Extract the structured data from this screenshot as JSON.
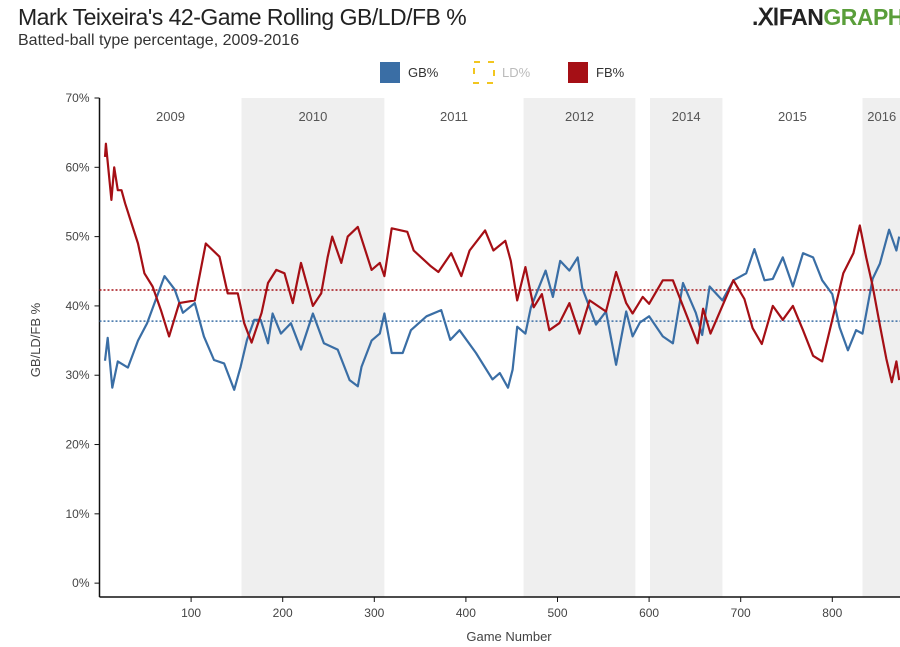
{
  "header": {
    "title": "Mark Teixeira's 42-Game Rolling GB/LD/FB %",
    "subtitle": "Batted-ball type percentage, 2009-2016",
    "logo_text": "FANGRAPHS"
  },
  "colors": {
    "gb": "#3a6ea5",
    "ld": "#f2c61f",
    "fb": "#a50f15",
    "band": "#efefef"
  },
  "chart_data": {
    "type": "line",
    "title": "Mark Teixeira's 42-Game Rolling GB/LD/FB %",
    "subtitle": "Batted-ball type percentage, 2009-2016",
    "xlabel": "Game Number",
    "ylabel": "GB/LD/FB %",
    "xlim": [
      0,
      875
    ],
    "ylim": [
      -2,
      70
    ],
    "xticks": [
      100,
      200,
      300,
      400,
      500,
      600,
      700,
      800
    ],
    "yticks": [
      0,
      10,
      20,
      30,
      40,
      50,
      60,
      70
    ],
    "ytick_labels": [
      "0%",
      "10%",
      "20%",
      "30%",
      "40%",
      "50%",
      "60%",
      "70%"
    ],
    "legend": {
      "placement": "top",
      "items": [
        {
          "label": "GB%",
          "key": "gb"
        },
        {
          "label": "LD%",
          "key": "ld",
          "hidden": true
        },
        {
          "label": "FB%",
          "key": "fb"
        }
      ]
    },
    "seasons": [
      {
        "label": "2009",
        "start": 0,
        "end": 155,
        "shaded": false
      },
      {
        "label": "2010",
        "start": 155,
        "end": 311,
        "shaded": true
      },
      {
        "label": "2011",
        "start": 311,
        "end": 463,
        "shaded": false
      },
      {
        "label": "2012",
        "start": 463,
        "end": 585,
        "shaded": true
      },
      {
        "label": "2014",
        "start": 601,
        "end": 680,
        "shaded": true
      },
      {
        "label": "2015",
        "start": 680,
        "end": 833,
        "shaded": false
      },
      {
        "label": "2016",
        "start": 833,
        "end": 875,
        "shaded": true
      }
    ],
    "averages": {
      "gb": 37.8,
      "fb": 42.3
    },
    "series": [
      {
        "name": "GB%",
        "key": "gb",
        "points": [
          [
            6,
            32.1
          ],
          [
            9,
            35.4
          ],
          [
            14,
            28.2
          ],
          [
            20,
            32
          ],
          [
            31,
            31.1
          ],
          [
            42,
            35
          ],
          [
            52,
            37.5
          ],
          [
            60,
            40.4
          ],
          [
            71,
            44.3
          ],
          [
            82,
            42.4
          ],
          [
            91,
            39
          ],
          [
            104,
            40.4
          ],
          [
            114,
            35.6
          ],
          [
            125,
            32.2
          ],
          [
            136,
            31.7
          ],
          [
            147,
            27.9
          ],
          [
            154,
            31.2
          ],
          [
            161,
            35.1
          ],
          [
            169,
            38
          ],
          [
            176,
            38
          ],
          [
            184,
            34.6
          ],
          [
            189,
            38.9
          ],
          [
            198,
            36
          ],
          [
            209,
            37.5
          ],
          [
            220,
            33.7
          ],
          [
            233,
            38.9
          ],
          [
            245,
            34.6
          ],
          [
            260,
            33.7
          ],
          [
            273,
            29.3
          ],
          [
            282,
            28.4
          ],
          [
            286,
            31.2
          ],
          [
            297,
            35
          ],
          [
            306,
            36
          ],
          [
            311,
            38.9
          ],
          [
            319,
            33.2
          ],
          [
            331,
            33.2
          ],
          [
            340,
            36.5
          ],
          [
            357,
            38.5
          ],
          [
            373,
            39.4
          ],
          [
            383,
            35.1
          ],
          [
            393,
            36.5
          ],
          [
            411,
            33.2
          ],
          [
            429,
            29.4
          ],
          [
            437,
            30.3
          ],
          [
            446,
            28.2
          ],
          [
            451,
            30.8
          ],
          [
            456,
            37
          ],
          [
            465,
            36
          ],
          [
            471,
            39.8
          ],
          [
            487,
            45.1
          ],
          [
            495,
            41.3
          ],
          [
            503,
            46.5
          ],
          [
            513,
            45.1
          ],
          [
            522,
            47
          ],
          [
            527,
            42.6
          ],
          [
            542,
            37.3
          ],
          [
            553,
            39.2
          ],
          [
            564,
            31.5
          ],
          [
            575,
            39.2
          ],
          [
            582,
            35.6
          ],
          [
            590,
            37.6
          ],
          [
            600,
            38.5
          ],
          [
            615,
            35.6
          ],
          [
            626,
            34.6
          ],
          [
            637,
            43.3
          ],
          [
            651,
            39
          ],
          [
            658,
            35.8
          ],
          [
            666,
            42.8
          ],
          [
            680,
            40.8
          ],
          [
            692,
            43.7
          ],
          [
            706,
            44.7
          ],
          [
            715,
            48.2
          ],
          [
            726,
            43.7
          ],
          [
            735,
            43.9
          ],
          [
            746,
            47
          ],
          [
            757,
            42.8
          ],
          [
            768,
            47.6
          ],
          [
            779,
            47
          ],
          [
            789,
            43.7
          ],
          [
            800,
            41.7
          ],
          [
            808,
            36.9
          ],
          [
            817,
            33.6
          ],
          [
            826,
            36.5
          ],
          [
            833,
            36
          ],
          [
            844,
            43.9
          ],
          [
            852,
            46.1
          ],
          [
            862,
            51
          ],
          [
            870,
            48
          ],
          [
            873,
            50
          ]
        ]
      },
      {
        "name": "FB%",
        "key": "fb",
        "points": [
          [
            6,
            61.5
          ],
          [
            7,
            63.4
          ],
          [
            13,
            55.3
          ],
          [
            16,
            60
          ],
          [
            20,
            56.7
          ],
          [
            24,
            56.7
          ],
          [
            28,
            54.8
          ],
          [
            42,
            49
          ],
          [
            49,
            44.7
          ],
          [
            58,
            42.8
          ],
          [
            67,
            39.4
          ],
          [
            76,
            35.6
          ],
          [
            87,
            40.4
          ],
          [
            104,
            40.8
          ],
          [
            116,
            49
          ],
          [
            131,
            47.1
          ],
          [
            140,
            41.8
          ],
          [
            151,
            41.8
          ],
          [
            158,
            37.5
          ],
          [
            166,
            34.7
          ],
          [
            177,
            39
          ],
          [
            184,
            43.3
          ],
          [
            193,
            45.2
          ],
          [
            202,
            44.7
          ],
          [
            211,
            40.4
          ],
          [
            220,
            46.2
          ],
          [
            233,
            40
          ],
          [
            242,
            41.8
          ],
          [
            249,
            47
          ],
          [
            254,
            50
          ],
          [
            264,
            46.2
          ],
          [
            271,
            50
          ],
          [
            282,
            51.4
          ],
          [
            297,
            45.2
          ],
          [
            306,
            46.2
          ],
          [
            311,
            44.3
          ],
          [
            319,
            51.2
          ],
          [
            336,
            50.7
          ],
          [
            343,
            48
          ],
          [
            361,
            45.8
          ],
          [
            370,
            44.9
          ],
          [
            384,
            47.6
          ],
          [
            395,
            44.3
          ],
          [
            404,
            48
          ],
          [
            421,
            50.9
          ],
          [
            430,
            48
          ],
          [
            443,
            49.4
          ],
          [
            449,
            46.5
          ],
          [
            456,
            40.8
          ],
          [
            465,
            45.6
          ],
          [
            474,
            39.8
          ],
          [
            483,
            41.7
          ],
          [
            491,
            36.5
          ],
          [
            502,
            37.5
          ],
          [
            513,
            40.4
          ],
          [
            524,
            36
          ],
          [
            535,
            40.8
          ],
          [
            553,
            39.2
          ],
          [
            564,
            44.9
          ],
          [
            575,
            40.4
          ],
          [
            582,
            38.9
          ],
          [
            593,
            41.3
          ],
          [
            600,
            40.3
          ],
          [
            615,
            43.7
          ],
          [
            626,
            43.7
          ],
          [
            653,
            34.6
          ],
          [
            659,
            39.6
          ],
          [
            667,
            36
          ],
          [
            692,
            43.7
          ],
          [
            704,
            41
          ],
          [
            713,
            36.8
          ],
          [
            723,
            34.5
          ],
          [
            735,
            40
          ],
          [
            746,
            38
          ],
          [
            757,
            40
          ],
          [
            768,
            36.5
          ],
          [
            779,
            32.8
          ],
          [
            789,
            32
          ],
          [
            800,
            38
          ],
          [
            812,
            44.7
          ],
          [
            823,
            47.6
          ],
          [
            830,
            51.6
          ],
          [
            837,
            47
          ],
          [
            844,
            42.9
          ],
          [
            852,
            37.2
          ],
          [
            859,
            32.4
          ],
          [
            865,
            29
          ],
          [
            870,
            32
          ],
          [
            873,
            29.3
          ]
        ]
      }
    ]
  }
}
